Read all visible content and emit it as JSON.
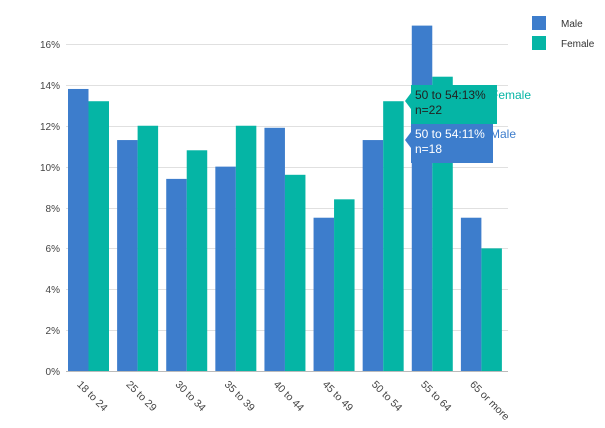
{
  "chart_data": {
    "type": "bar",
    "title": "",
    "xlabel": "",
    "ylabel": "",
    "categories": [
      "18 to 24",
      "25 to 29",
      "30 to 34",
      "35 to 39",
      "40 to 44",
      "45 to 49",
      "50 to 54",
      "55 to 64",
      "65 or more"
    ],
    "series": [
      {
        "name": "Male",
        "color": "#3d7dcc",
        "values": [
          13.8,
          11.3,
          9.4,
          10.0,
          11.9,
          7.5,
          11.3,
          16.9,
          7.5
        ]
      },
      {
        "name": "Female",
        "color": "#05b5a5",
        "values": [
          13.2,
          12.0,
          10.8,
          12.0,
          9.6,
          8.4,
          13.2,
          14.4,
          6.0
        ]
      }
    ],
    "ylim": [
      0,
      16
    ],
    "yticks": [
      "0%",
      "2%",
      "4%",
      "6%",
      "8%",
      "10%",
      "12%",
      "14%",
      "16%"
    ],
    "ytick_values": [
      0,
      2,
      4,
      6,
      8,
      10,
      12,
      14,
      16
    ],
    "grid": true,
    "legend": "top-right"
  },
  "tooltips": [
    {
      "series": "Female",
      "line1": "50 to 54:13%",
      "line2": "n=22",
      "label": "Female",
      "color": "#05b5a5"
    },
    {
      "series": "Male",
      "line1": "50 to 54:11%",
      "line2": "n=18",
      "label": "Male",
      "color": "#3d7dcc"
    }
  ]
}
